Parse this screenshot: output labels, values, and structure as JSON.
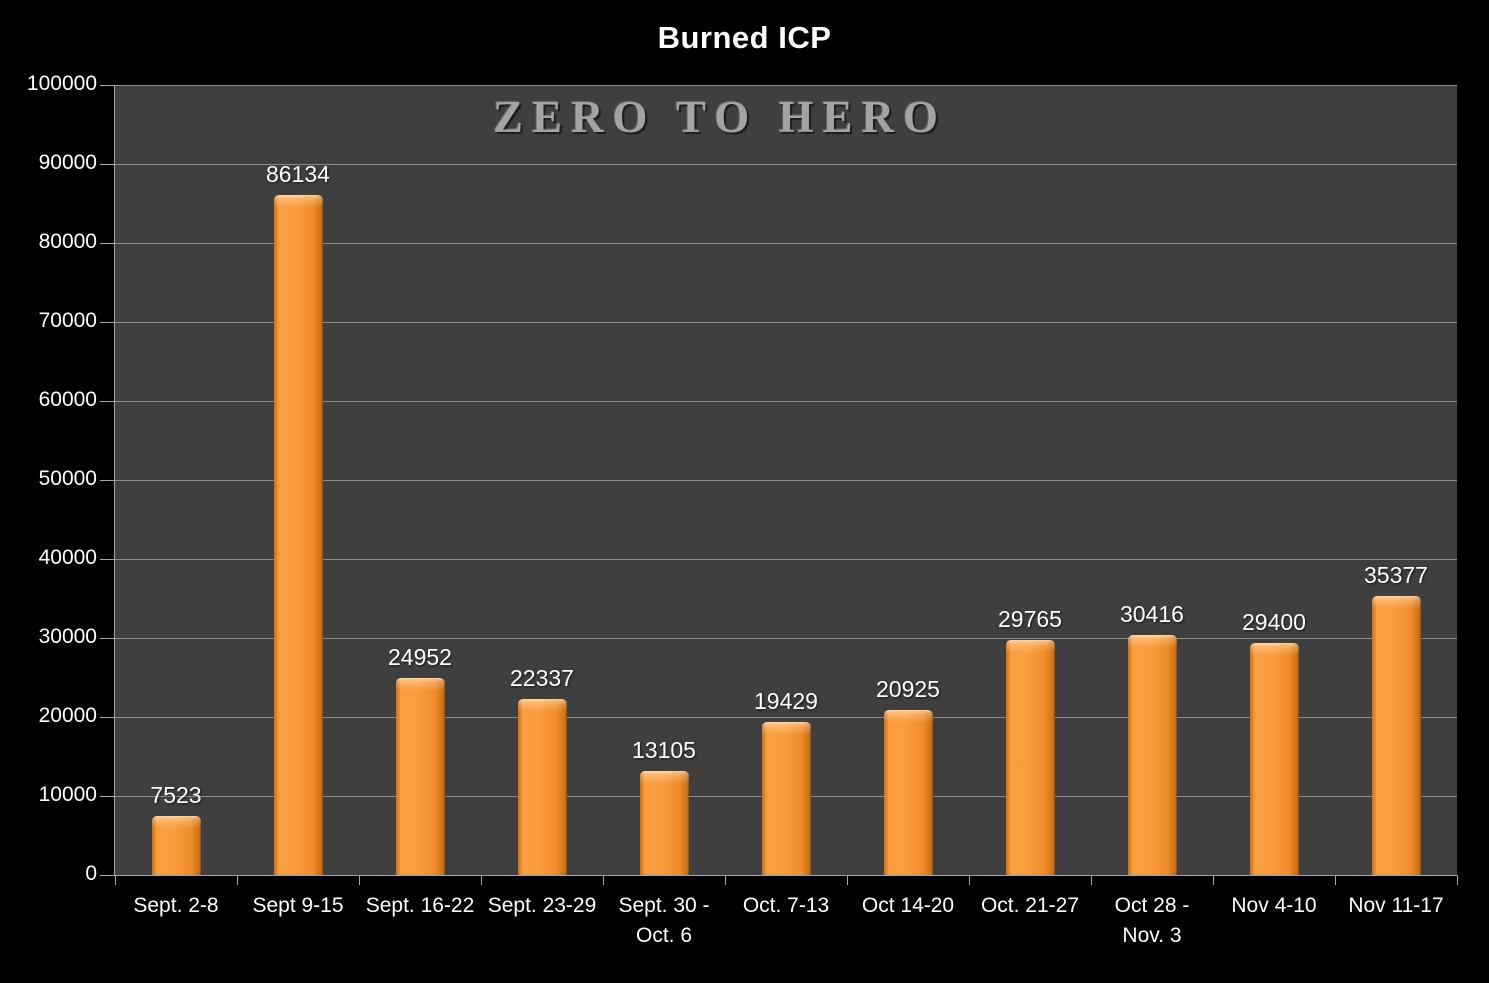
{
  "header": {
    "title": "Burned ICP"
  },
  "watermark": {
    "text": "ZERO TO HERO"
  },
  "chart_data": {
    "type": "bar",
    "title": "Burned ICP",
    "categories": [
      "Sept. 2-8",
      "Sept 9-15",
      "Sept. 16-22",
      "Sept. 23-29",
      "Sept. 30 -\nOct. 6",
      "Oct. 7-13",
      "Oct 14-20",
      "Oct. 21-27",
      "Oct 28 -\nNov. 3",
      "Nov 4-10",
      "Nov 11-17"
    ],
    "values": [
      7523,
      86134,
      24952,
      22337,
      13105,
      19429,
      20925,
      29765,
      30416,
      29400,
      35377
    ],
    "xlabel": "",
    "ylabel": "",
    "ylim": [
      0,
      100000
    ],
    "ytick_interval": 10000,
    "ytick_labels": [
      "0",
      "10000",
      "20000",
      "30000",
      "40000",
      "50000",
      "60000",
      "70000",
      "80000",
      "90000",
      "100000"
    ],
    "grid": true,
    "legend": "none",
    "data_labels": true,
    "colors": {
      "bar": "#F8973A",
      "plot_background": "#3F3F3F",
      "canvas_background": "#000000",
      "gridline": "#8C8C8C",
      "axis": "#A6A6A6",
      "text": "#FFFFFF",
      "watermark": "#A3A3A3"
    }
  }
}
